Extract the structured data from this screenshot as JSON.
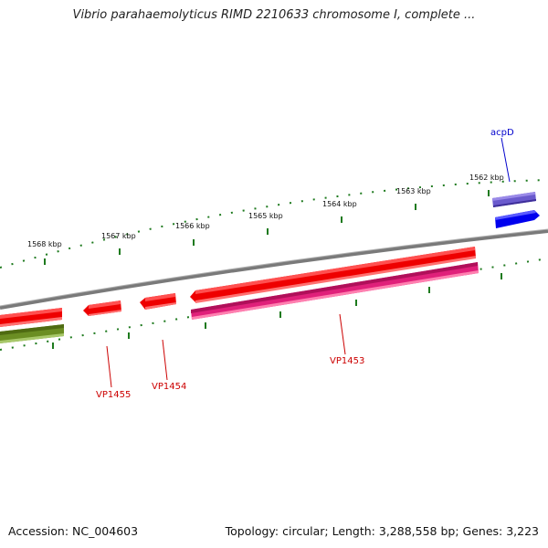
{
  "title": "Vibrio parahaemolyticus RIMD 2210633 chromosome I, complete ...",
  "footer": {
    "accession": "Accession: NC_004603",
    "topology": "Topology: circular; Length: 3,288,558 bp; Genes: 3,223"
  },
  "colors": {
    "backbone": "#808080",
    "ticks": "#1e7a1e",
    "forward_cds": "#0000ee",
    "forward_gene": "#6a5acd",
    "reverse_cds": "#ee0000",
    "reverse_gene": "#e0207a",
    "other": "#6b8e23",
    "label_red": "#cc0000",
    "label_blue": "#0000cc"
  },
  "map": {
    "ticks": [
      "1568 kbp",
      "1567 kbp",
      "1566 kbp",
      "1565 kbp",
      "1564 kbp",
      "1563 kbp",
      "1562 kbp"
    ],
    "labels": [
      "acpD",
      "VP1453",
      "VP1454",
      "VP1455"
    ]
  }
}
